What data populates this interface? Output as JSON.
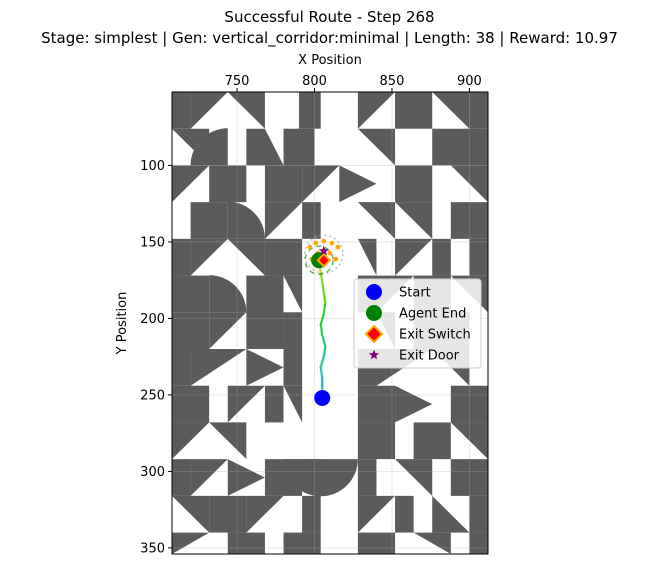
{
  "chart_data": {
    "type": "scatter",
    "title": "Successful Route - Step 268",
    "subtitle": "Stage: simplest | Gen: vertical_corridor:minimal | Length: 38 | Reward: 10.97",
    "xlabel": "X Position",
    "ylabel": "Y Position",
    "xlim": [
      708,
      912
    ],
    "ylim": [
      354,
      52
    ],
    "x_axis_position": "top",
    "y_inverted": true,
    "x_ticks": [
      750,
      800,
      850,
      900
    ],
    "y_ticks": [
      100,
      150,
      200,
      250,
      300,
      350
    ],
    "grid": true,
    "legend_position": "right",
    "legend": [
      "Start",
      "Agent End",
      "Exit Switch",
      "Exit Door"
    ],
    "colors": {
      "tile": "#5b5b5b",
      "start": "#0000ff",
      "agent_end": "#008000",
      "exit_switch_fill": "#ff0000",
      "exit_switch_edge": "#ffa500",
      "exit_door": "#800080",
      "trail_dots": "#ffa500"
    },
    "points": {
      "start": [
        805,
        252
      ],
      "agent_end": [
        803,
        162
      ],
      "exit_switch": [
        806,
        162
      ],
      "exit_door": [
        806,
        156
      ]
    },
    "path": [
      [
        805,
        246
      ],
      [
        805,
        239
      ],
      [
        804,
        232
      ],
      [
        806,
        225
      ],
      [
        807,
        218
      ],
      [
        805,
        211
      ],
      [
        804,
        204
      ],
      [
        806,
        197
      ],
      [
        807,
        190
      ],
      [
        806,
        183
      ],
      [
        805,
        176
      ],
      [
        804,
        170
      ],
      [
        803,
        164
      ],
      [
        803,
        162
      ]
    ],
    "tiles": [
      {
        "c": "g",
        "x": [
          708,
          720
        ],
        "y": [
          52,
          76
        ]
      },
      {
        "c": "p",
        "p": [
          [
            720,
            52
          ],
          [
            744,
            52
          ],
          [
            720,
            76
          ]
        ]
      },
      {
        "c": "p",
        "p": [
          [
            744,
            52
          ],
          [
            768,
            52
          ],
          [
            768,
            76
          ]
        ]
      },
      {
        "c": "g",
        "x": [
          790,
          804
        ],
        "y": [
          52,
          76
        ]
      },
      {
        "c": "p",
        "p": [
          [
            828,
            52
          ],
          [
            852,
            52
          ],
          [
            828,
            76
          ]
        ]
      },
      {
        "c": "g",
        "x": [
          852,
          876
        ],
        "y": [
          52,
          76
        ]
      },
      {
        "c": "p",
        "p": [
          [
            876,
            52
          ],
          [
            900,
            52
          ],
          [
            900,
            76
          ]
        ]
      },
      {
        "c": "g",
        "x": [
          900,
          912
        ],
        "y": [
          52,
          76
        ]
      },
      {
        "c": "p",
        "p": [
          [
            708,
            76
          ],
          [
            732,
            76
          ],
          [
            732,
            100
          ]
        ]
      },
      {
        "c": "a",
        "cx": 744,
        "cy": 100,
        "r": 24,
        "s": "tl"
      },
      {
        "c": "p",
        "p": [
          [
            756,
            76
          ],
          [
            768,
            76
          ],
          [
            780,
            100
          ],
          [
            756,
            100
          ]
        ]
      },
      {
        "c": "g",
        "x": [
          780,
          800
        ],
        "y": [
          76,
          100
        ]
      },
      {
        "c": "p",
        "p": [
          [
            828,
            76
          ],
          [
            852,
            76
          ],
          [
            852,
            100
          ]
        ]
      },
      {
        "c": "g",
        "x": [
          876,
          912
        ],
        "y": [
          76,
          100
        ]
      },
      {
        "c": "p",
        "p": [
          [
            708,
            100
          ],
          [
            732,
            100
          ],
          [
            708,
            124
          ]
        ]
      },
      {
        "c": "g",
        "x": [
          732,
          756
        ],
        "y": [
          100,
          124
        ]
      },
      {
        "c": "g",
        "x": [
          768,
          792
        ],
        "y": [
          100,
          124
        ]
      },
      {
        "c": "p",
        "p": [
          [
            792,
            100
          ],
          [
            816,
            100
          ],
          [
            792,
            124
          ]
        ]
      },
      {
        "c": "p",
        "p": [
          [
            816,
            100
          ],
          [
            840,
            112
          ],
          [
            816,
            124
          ]
        ]
      },
      {
        "c": "g",
        "x": [
          852,
          876
        ],
        "y": [
          100,
          124
        ]
      },
      {
        "c": "p",
        "p": [
          [
            888,
            100
          ],
          [
            912,
            100
          ],
          [
            912,
            124
          ]
        ]
      },
      {
        "c": "a",
        "cx": 744,
        "cy": 148,
        "r": 24,
        "s": "tr"
      },
      {
        "c": "g",
        "x": [
          720,
          744
        ],
        "y": [
          124,
          148
        ]
      },
      {
        "c": "p",
        "p": [
          [
            768,
            124
          ],
          [
            792,
            124
          ],
          [
            768,
            148
          ]
        ]
      },
      {
        "c": "g",
        "x": [
          792,
          804
        ],
        "y": [
          124,
          148
        ]
      },
      {
        "c": "p",
        "p": [
          [
            828,
            124
          ],
          [
            852,
            124
          ],
          [
            852,
            148
          ]
        ]
      },
      {
        "c": "p",
        "p": [
          [
            852,
            124
          ],
          [
            876,
            124
          ],
          [
            876,
            148
          ]
        ]
      },
      {
        "c": "g",
        "x": [
          888,
          912
        ],
        "y": [
          124,
          148
        ]
      },
      {
        "c": "g",
        "x": [
          708,
          720
        ],
        "y": [
          148,
          172
        ]
      },
      {
        "c": "p",
        "p": [
          [
            720,
            148
          ],
          [
            744,
            148
          ],
          [
            720,
            172
          ]
        ]
      },
      {
        "c": "p",
        "p": [
          [
            744,
            148
          ],
          [
            768,
            148
          ],
          [
            768,
            172
          ]
        ]
      },
      {
        "c": "g",
        "x": [
          768,
          792
        ],
        "y": [
          148,
          172
        ]
      },
      {
        "c": "p",
        "p": [
          [
            828,
            148
          ],
          [
            840,
            148
          ],
          [
            840,
            172
          ]
        ]
      },
      {
        "c": "p",
        "p": [
          [
            852,
            148
          ],
          [
            876,
            148
          ],
          [
            852,
            172
          ]
        ]
      },
      {
        "c": "g",
        "x": [
          876,
          888
        ],
        "y": [
          148,
          172
        ]
      },
      {
        "c": "g",
        "x": [
          900,
          912
        ],
        "y": [
          148,
          172
        ]
      },
      {
        "c": "a",
        "cx": 732,
        "cy": 196,
        "r": 24,
        "s": "tr"
      },
      {
        "c": "g",
        "x": [
          708,
          732
        ],
        "y": [
          172,
          196
        ]
      },
      {
        "c": "g",
        "x": [
          756,
          780
        ],
        "y": [
          172,
          220
        ]
      },
      {
        "c": "p",
        "p": [
          [
            780,
            172
          ],
          [
            792,
            172
          ],
          [
            792,
            196
          ]
        ]
      },
      {
        "c": "g",
        "x": [
          828,
          840
        ],
        "y": [
          172,
          196
        ]
      },
      {
        "c": "p",
        "p": [
          [
            840,
            172
          ],
          [
            864,
            172
          ],
          [
            840,
            196
          ]
        ]
      },
      {
        "c": "g",
        "x": [
          864,
          888
        ],
        "y": [
          172,
          196
        ]
      },
      {
        "c": "p",
        "p": [
          [
            888,
            172
          ],
          [
            912,
            172
          ],
          [
            912,
            196
          ]
        ]
      },
      {
        "c": "g",
        "x": [
          708,
          732
        ],
        "y": [
          196,
          220
        ]
      },
      {
        "c": "p",
        "p": [
          [
            732,
            196
          ],
          [
            756,
            196
          ],
          [
            732,
            220
          ]
        ]
      },
      {
        "c": "g",
        "x": [
          780,
          792
        ],
        "y": [
          196,
          244
        ]
      },
      {
        "c": "p",
        "p": [
          [
            840,
            196
          ],
          [
            852,
            196
          ],
          [
            852,
            220
          ]
        ]
      },
      {
        "c": "g",
        "x": [
          864,
          900
        ],
        "y": [
          196,
          220
        ]
      },
      {
        "c": "g",
        "x": [
          708,
          720
        ],
        "y": [
          220,
          244
        ]
      },
      {
        "c": "p",
        "p": [
          [
            720,
            220
          ],
          [
            756,
            220
          ],
          [
            720,
            244
          ]
        ]
      },
      {
        "c": "p",
        "p": [
          [
            756,
            220
          ],
          [
            780,
            232
          ],
          [
            756,
            244
          ]
        ]
      },
      {
        "c": "g",
        "x": [
          828,
          840
        ],
        "y": [
          220,
          244
        ]
      },
      {
        "c": "p",
        "p": [
          [
            840,
            220
          ],
          [
            876,
            220
          ],
          [
            840,
            244
          ]
        ]
      },
      {
        "c": "p",
        "p": [
          [
            876,
            220
          ],
          [
            900,
            220
          ],
          [
            900,
            244
          ]
        ]
      },
      {
        "c": "g",
        "x": [
          708,
          732
        ],
        "y": [
          244,
          268
        ]
      },
      {
        "c": "p",
        "p": [
          [
            744,
            244
          ],
          [
            768,
            244
          ],
          [
            744,
            268
          ]
        ]
      },
      {
        "c": "g",
        "x": [
          768,
          780
        ],
        "y": [
          244,
          268
        ]
      },
      {
        "c": "p",
        "p": [
          [
            780,
            244
          ],
          [
            792,
            244
          ],
          [
            792,
            268
          ]
        ]
      },
      {
        "c": "g",
        "x": [
          828,
          852
        ],
        "y": [
          244,
          268
        ]
      },
      {
        "c": "p",
        "p": [
          [
            852,
            244
          ],
          [
            876,
            256
          ],
          [
            852,
            268
          ]
        ]
      },
      {
        "c": "g",
        "x": [
          888,
          912
        ],
        "y": [
          244,
          268
        ]
      },
      {
        "c": "p",
        "p": [
          [
            708,
            268
          ],
          [
            732,
            268
          ],
          [
            708,
            292
          ]
        ]
      },
      {
        "c": "p",
        "p": [
          [
            732,
            268
          ],
          [
            756,
            268
          ],
          [
            756,
            292
          ]
        ]
      },
      {
        "c": "a",
        "cx": 804,
        "cy": 292,
        "r": 24,
        "s": "bh"
      },
      {
        "c": "g",
        "x": [
          828,
          852
        ],
        "y": [
          268,
          292
        ]
      },
      {
        "c": "g",
        "x": [
          864,
          888
        ],
        "y": [
          268,
          292
        ]
      },
      {
        "c": "p",
        "p": [
          [
            888,
            268
          ],
          [
            912,
            268
          ],
          [
            912,
            292
          ]
        ]
      },
      {
        "c": "g",
        "x": [
          708,
          720
        ],
        "y": [
          292,
          316
        ]
      },
      {
        "c": "p",
        "p": [
          [
            720,
            292
          ],
          [
            744,
            292
          ],
          [
            720,
            316
          ]
        ]
      },
      {
        "c": "p",
        "p": [
          [
            744,
            292
          ],
          [
            768,
            304
          ],
          [
            744,
            316
          ]
        ]
      },
      {
        "c": "g",
        "x": [
          768,
          792
        ],
        "y": [
          292,
          316
        ]
      },
      {
        "c": "p",
        "p": [
          [
            792,
            292
          ],
          [
            804,
            292
          ],
          [
            804,
            316
          ]
        ]
      },
      {
        "c": "g",
        "x": [
          828,
          840
        ],
        "y": [
          292,
          316
        ]
      },
      {
        "c": "p",
        "p": [
          [
            852,
            292
          ],
          [
            876,
            292
          ],
          [
            876,
            316
          ]
        ]
      },
      {
        "c": "g",
        "x": [
          888,
          912
        ],
        "y": [
          292,
          316
        ]
      },
      {
        "c": "p",
        "p": [
          [
            708,
            316
          ],
          [
            732,
            316
          ],
          [
            732,
            340
          ]
        ]
      },
      {
        "c": "g",
        "x": [
          732,
          756
        ],
        "y": [
          316,
          340
        ]
      },
      {
        "c": "p",
        "p": [
          [
            756,
            316
          ],
          [
            780,
            316
          ],
          [
            756,
            340
          ]
        ]
      },
      {
        "c": "g",
        "x": [
          792,
          804
        ],
        "y": [
          316,
          340
        ]
      },
      {
        "c": "p",
        "p": [
          [
            828,
            316
          ],
          [
            852,
            316
          ],
          [
            828,
            340
          ]
        ]
      },
      {
        "c": "g",
        "x": [
          852,
          864
        ],
        "y": [
          316,
          340
        ]
      },
      {
        "c": "p",
        "p": [
          [
            876,
            316
          ],
          [
            900,
            340
          ],
          [
            876,
            340
          ]
        ]
      },
      {
        "c": "g",
        "x": [
          900,
          912
        ],
        "y": [
          316,
          340
        ]
      },
      {
        "c": "p",
        "p": [
          [
            708,
            340
          ],
          [
            732,
            340
          ],
          [
            708,
            354
          ]
        ]
      },
      {
        "c": "g",
        "x": [
          744,
          768
        ],
        "y": [
          340,
          354
        ]
      },
      {
        "c": "g",
        "x": [
          780,
          804
        ],
        "y": [
          340,
          354
        ]
      },
      {
        "c": "g",
        "x": [
          828,
          852
        ],
        "y": [
          340,
          354
        ]
      },
      {
        "c": "p",
        "p": [
          [
            864,
            340
          ],
          [
            888,
            340
          ],
          [
            888,
            354
          ]
        ]
      },
      {
        "c": "g",
        "x": [
          900,
          912
        ],
        "y": [
          340,
          354
        ]
      }
    ]
  }
}
